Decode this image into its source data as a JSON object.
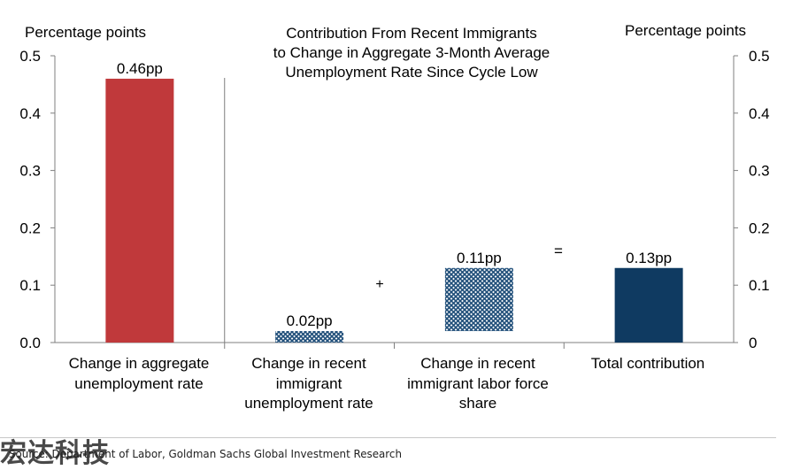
{
  "chart_data": {
    "type": "bar",
    "title_lines": [
      "Contribution From Recent Immigrants",
      "to Change in Aggregate 3-Month Average",
      "Unemployment Rate Since Cycle Low"
    ],
    "ylabel_left": "Percentage points",
    "ylabel_right": "Percentage points",
    "ylim": [
      0,
      0.5
    ],
    "yticks_left": [
      "0.0",
      "0.1",
      "0.2",
      "0.3",
      "0.4",
      "0.5"
    ],
    "yticks_right": [
      "0",
      "0.1",
      "0.2",
      "0.3",
      "0.4",
      "0.5"
    ],
    "categories": [
      [
        "Change in aggregate",
        "unemployment rate"
      ],
      [
        "Change in recent",
        "immigrant",
        "unemployment rate"
      ],
      [
        "Change in recent",
        "immigrant labor force",
        "share"
      ],
      [
        "Total contribution"
      ]
    ],
    "bars": [
      {
        "base": 0,
        "value": 0.46,
        "label": "0.46pp",
        "style": "solid",
        "color": "#c0393b"
      },
      {
        "base": 0,
        "value": 0.02,
        "label": "0.02pp",
        "style": "hatched",
        "color": "#1f4e79"
      },
      {
        "base": 0.02,
        "value": 0.11,
        "label": "0.11pp",
        "style": "hatched",
        "color": "#1f4e79"
      },
      {
        "base": 0,
        "value": 0.13,
        "label": "0.13pp",
        "style": "solid",
        "color": "#0f3a61"
      }
    ],
    "operators": [
      "+",
      "="
    ],
    "grid": false
  },
  "source": "Source: Department of Labor, Goldman Sachs Global Investment Research",
  "watermark": "宏达科技"
}
